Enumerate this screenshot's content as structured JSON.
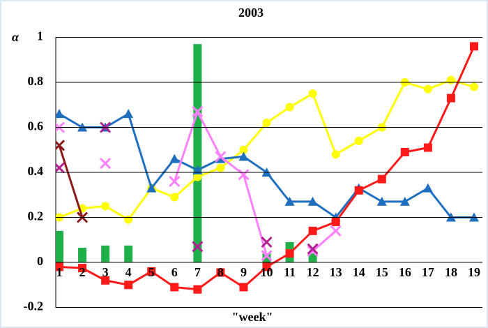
{
  "chart_data": {
    "type": "line",
    "title": "2003",
    "y_label": "α",
    "x_label": "\"week\"",
    "x": [
      1,
      2,
      3,
      4,
      5,
      6,
      7,
      8,
      9,
      10,
      11,
      12,
      13,
      14,
      15,
      16,
      17,
      18,
      19
    ],
    "xlim": [
      1,
      19
    ],
    "xticks": [
      1,
      2,
      3,
      4,
      5,
      6,
      7,
      8,
      9,
      10,
      11,
      12,
      13,
      14,
      15,
      16,
      17,
      18,
      19
    ],
    "ylim": [
      -0.2,
      1
    ],
    "yticks": [
      -0.2,
      0,
      0.2,
      0.4,
      0.6,
      0.8,
      1
    ],
    "grid": true,
    "series": [
      {
        "type": "bar",
        "color": "#1fb04a",
        "values": [
          0.14,
          0.065,
          0.075,
          0.075,
          null,
          null,
          0.97,
          null,
          null,
          0.04,
          0.09,
          0.04,
          null,
          null,
          null,
          null,
          null,
          null,
          null
        ]
      },
      {
        "type": "line",
        "marker": "circle",
        "color": "#ffff00",
        "values": [
          0.2,
          0.24,
          0.25,
          0.19,
          0.33,
          0.29,
          0.38,
          0.42,
          0.5,
          0.62,
          0.69,
          0.75,
          0.48,
          0.54,
          0.6,
          0.8,
          0.77,
          0.81,
          0.78
        ]
      },
      {
        "type": "line",
        "marker": "triangle",
        "color": "#1f6fbf",
        "values": [
          0.66,
          0.6,
          0.6,
          0.66,
          0.33,
          0.46,
          0.41,
          0.46,
          0.47,
          0.4,
          0.27,
          0.27,
          0.2,
          0.33,
          0.27,
          0.27,
          0.33,
          0.2,
          0.2
        ]
      },
      {
        "type": "line",
        "marker": "square",
        "color": "#ff1a1a",
        "values": [
          -0.02,
          -0.025,
          -0.08,
          -0.1,
          -0.04,
          -0.11,
          -0.12,
          -0.045,
          -0.11,
          -0.02,
          0.04,
          0.14,
          0.18,
          0.32,
          0.37,
          0.49,
          0.51,
          0.73,
          0.96
        ]
      },
      {
        "type": "line",
        "marker": "x",
        "color": "#ff80ff",
        "values": [
          0.6,
          null,
          0.44,
          null,
          null,
          0.36,
          0.67,
          0.47,
          0.39,
          0.03,
          null,
          0.05,
          0.14,
          null,
          null,
          null,
          null,
          null,
          null
        ]
      },
      {
        "type": "line",
        "marker": "x",
        "color": "#8b1a1a",
        "values": [
          0.52,
          0.2,
          null,
          null,
          null,
          null,
          null,
          null,
          null,
          null,
          null,
          null,
          null,
          null,
          null,
          null,
          null,
          null,
          null
        ]
      },
      {
        "type": "line",
        "marker": "x",
        "line": false,
        "color": "#b0208f",
        "values": [
          0.42,
          null,
          0.6,
          null,
          null,
          null,
          0.07,
          null,
          null,
          0.09,
          null,
          0.06,
          null,
          null,
          null,
          null,
          null,
          null,
          null
        ]
      }
    ]
  }
}
